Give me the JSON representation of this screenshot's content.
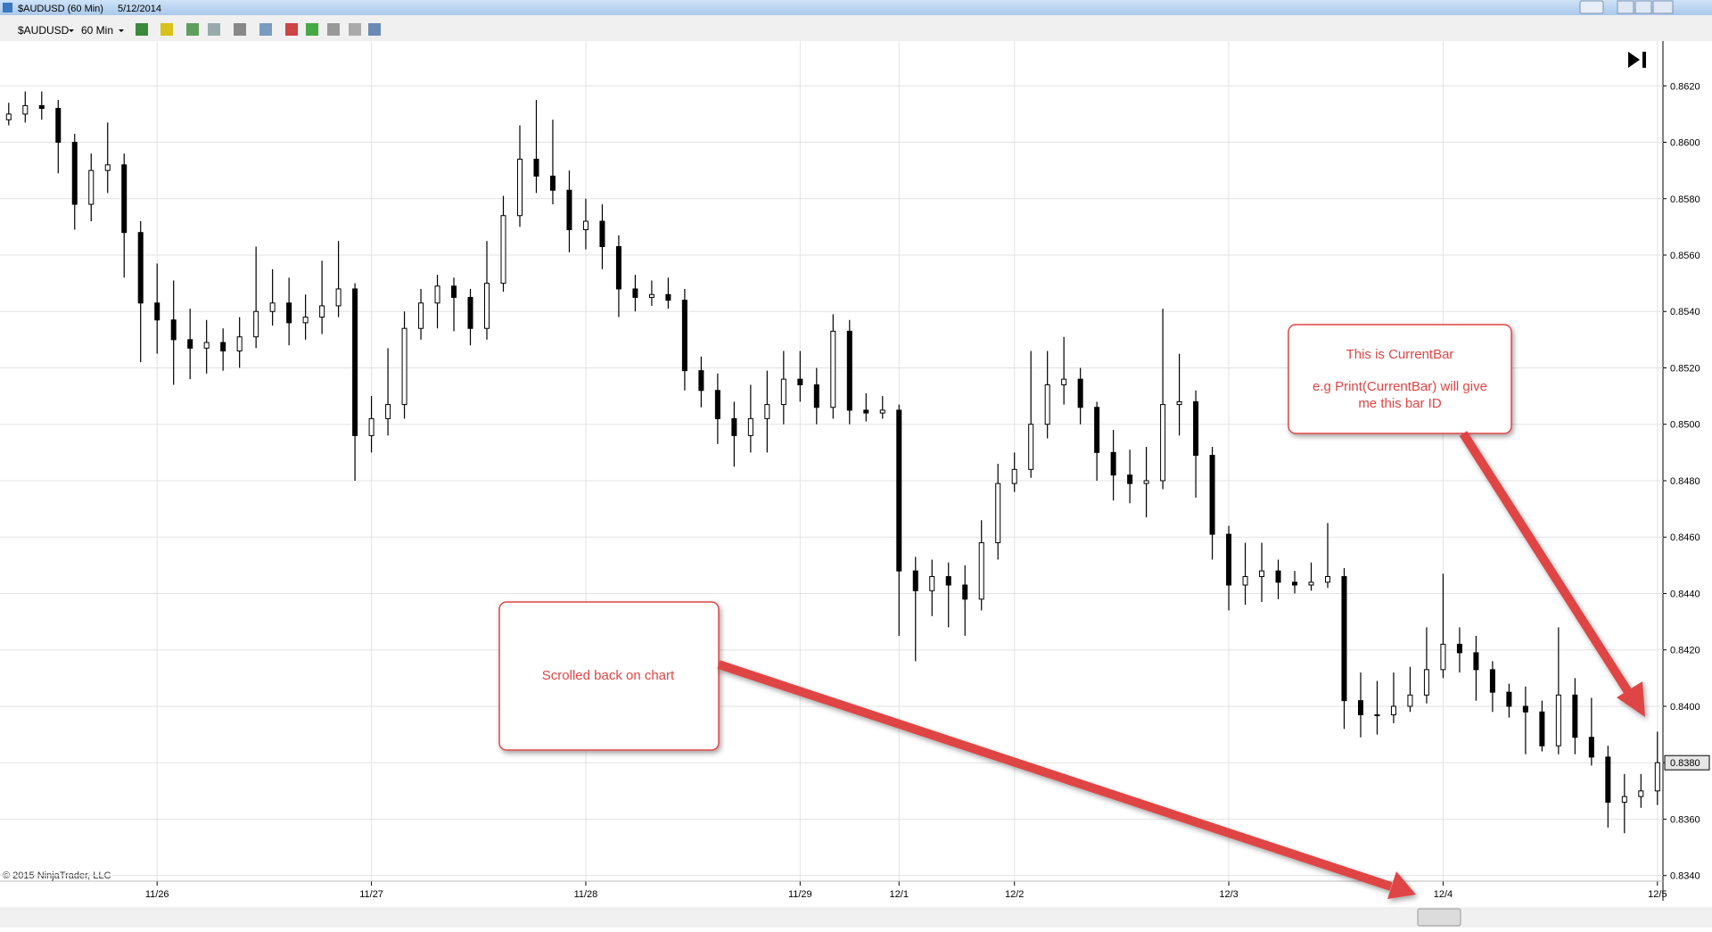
{
  "window": {
    "title": "$AUDUSD (60 Min)",
    "date": "5/12/2014"
  },
  "toolbar": {
    "instrument": "$AUDUSD",
    "interval": "60 Min"
  },
  "chart_data": {
    "type": "candlestick",
    "categories": [
      null,
      null,
      null,
      null,
      null,
      null,
      null,
      null,
      null,
      "11/26",
      null,
      null,
      null,
      null,
      null,
      null,
      null,
      null,
      null,
      null,
      null,
      null,
      "11/27",
      null,
      null,
      null,
      null,
      null,
      null,
      null,
      null,
      null,
      null,
      null,
      null,
      "11/28",
      null,
      null,
      null,
      null,
      null,
      null,
      null,
      null,
      null,
      null,
      null,
      null,
      "11/29",
      null,
      null,
      null,
      null,
      null,
      "12/1",
      null,
      null,
      null,
      null,
      null,
      null,
      "12/2",
      null,
      null,
      null,
      null,
      null,
      null,
      null,
      null,
      null,
      null,
      null,
      null,
      "12/3",
      null,
      null,
      null,
      null,
      null,
      null,
      null,
      null,
      null,
      null,
      null,
      null,
      "12/4",
      null,
      null,
      null,
      null,
      null,
      null,
      null,
      null,
      null,
      null,
      null,
      null,
      "12/5"
    ],
    "open": [
      0.8608,
      0.861,
      0.8613,
      0.8612,
      0.86,
      0.8578,
      0.859,
      0.8592,
      0.8568,
      0.8543,
      0.8537,
      0.853,
      0.8527,
      0.8529,
      0.8526,
      0.8531,
      0.854,
      0.8543,
      0.8536,
      0.8538,
      0.8542,
      0.8548,
      0.8496,
      0.8502,
      0.8507,
      0.8534,
      0.8543,
      0.8549,
      0.8545,
      0.8534,
      0.855,
      0.8574,
      0.8594,
      0.8588,
      0.8583,
      0.8569,
      0.8572,
      0.8563,
      0.8548,
      0.8545,
      0.8546,
      0.8544,
      0.8519,
      0.8512,
      0.8502,
      0.8496,
      0.8502,
      0.8507,
      0.8516,
      0.8514,
      0.8506,
      0.8533,
      0.8505,
      0.8504,
      0.8505,
      0.8448,
      0.8441,
      0.8446,
      0.8443,
      0.8438,
      0.8458,
      0.8479,
      0.8484,
      0.85,
      0.8514,
      0.8516,
      0.8506,
      0.849,
      0.8482,
      0.8479,
      0.848,
      0.8507,
      0.8508,
      0.8489,
      0.8461,
      0.8443,
      0.8446,
      0.8448,
      0.8444,
      0.8443,
      0.8444,
      0.8446,
      0.8402,
      0.8397,
      0.8397,
      0.84,
      0.8404,
      0.8413,
      0.8422,
      0.8419,
      0.8413,
      0.8405,
      0.84,
      0.8398,
      0.8386,
      0.8404,
      0.8389,
      0.8382,
      0.8366,
      0.8368,
      0.837
    ],
    "high": [
      0.8614,
      0.8618,
      0.8618,
      0.8615,
      0.8603,
      0.8596,
      0.8607,
      0.8596,
      0.8572,
      0.8557,
      0.8551,
      0.8541,
      0.8537,
      0.8534,
      0.8538,
      0.8563,
      0.8555,
      0.8552,
      0.8546,
      0.8558,
      0.8565,
      0.855,
      0.851,
      0.8527,
      0.854,
      0.8548,
      0.8553,
      0.8552,
      0.8548,
      0.8565,
      0.8581,
      0.8606,
      0.8615,
      0.8608,
      0.859,
      0.858,
      0.8578,
      0.8567,
      0.8553,
      0.8551,
      0.8552,
      0.8548,
      0.8524,
      0.8518,
      0.8508,
      0.8514,
      0.8519,
      0.8526,
      0.8526,
      0.852,
      0.8539,
      0.8537,
      0.8511,
      0.851,
      0.8507,
      0.8453,
      0.8452,
      0.8451,
      0.845,
      0.8466,
      0.8486,
      0.849,
      0.8526,
      0.8526,
      0.8531,
      0.852,
      0.8508,
      0.8498,
      0.8491,
      0.8492,
      0.8541,
      0.8525,
      0.8512,
      0.8492,
      0.8464,
      0.8458,
      0.8458,
      0.8452,
      0.8448,
      0.8451,
      0.8465,
      0.8449,
      0.8412,
      0.8409,
      0.8412,
      0.8414,
      0.8428,
      0.8447,
      0.8428,
      0.8425,
      0.8416,
      0.8408,
      0.8407,
      0.8402,
      0.8428,
      0.841,
      0.8403,
      0.8386,
      0.8376,
      0.8376,
      0.8391
    ],
    "low": [
      0.8606,
      0.8607,
      0.8608,
      0.8589,
      0.8569,
      0.8572,
      0.8582,
      0.8552,
      0.8522,
      0.8525,
      0.8514,
      0.8516,
      0.8518,
      0.8519,
      0.852,
      0.8527,
      0.8535,
      0.8528,
      0.853,
      0.8532,
      0.8538,
      0.848,
      0.849,
      0.8496,
      0.8502,
      0.853,
      0.8534,
      0.8533,
      0.8528,
      0.853,
      0.8547,
      0.857,
      0.8582,
      0.8578,
      0.8561,
      0.8562,
      0.8555,
      0.8538,
      0.854,
      0.8542,
      0.8541,
      0.8512,
      0.8506,
      0.8493,
      0.8485,
      0.849,
      0.849,
      0.85,
      0.8508,
      0.85,
      0.8502,
      0.85,
      0.8501,
      0.8502,
      0.8425,
      0.8416,
      0.8432,
      0.8428,
      0.8425,
      0.8434,
      0.8452,
      0.8476,
      0.8481,
      0.8495,
      0.8507,
      0.85,
      0.848,
      0.8473,
      0.8472,
      0.8467,
      0.8477,
      0.8496,
      0.8474,
      0.8452,
      0.8434,
      0.8436,
      0.8437,
      0.8438,
      0.844,
      0.8441,
      0.8442,
      0.8392,
      0.8389,
      0.839,
      0.8394,
      0.8398,
      0.8401,
      0.841,
      0.8412,
      0.8402,
      0.8398,
      0.8396,
      0.8383,
      0.8384,
      0.8383,
      0.8383,
      0.8379,
      0.8357,
      0.8355,
      0.8364,
      0.8365
    ],
    "close": [
      0.861,
      0.8613,
      0.8612,
      0.86,
      0.8578,
      0.859,
      0.8592,
      0.8568,
      0.8543,
      0.8537,
      0.853,
      0.8527,
      0.8529,
      0.8526,
      0.8531,
      0.854,
      0.8543,
      0.8536,
      0.8538,
      0.8542,
      0.8548,
      0.8496,
      0.8502,
      0.8507,
      0.8534,
      0.8543,
      0.8549,
      0.8545,
      0.8534,
      0.855,
      0.8574,
      0.8594,
      0.8588,
      0.8583,
      0.8569,
      0.8572,
      0.8563,
      0.8548,
      0.8545,
      0.8546,
      0.8544,
      0.8519,
      0.8512,
      0.8502,
      0.8496,
      0.8502,
      0.8507,
      0.8516,
      0.8514,
      0.8506,
      0.8533,
      0.8505,
      0.8504,
      0.8505,
      0.8448,
      0.8441,
      0.8446,
      0.8443,
      0.8438,
      0.8458,
      0.8479,
      0.8484,
      0.85,
      0.8514,
      0.8516,
      0.8506,
      0.849,
      0.8482,
      0.8479,
      0.848,
      0.8507,
      0.8508,
      0.8489,
      0.8461,
      0.8443,
      0.8446,
      0.8448,
      0.8444,
      0.8443,
      0.8444,
      0.8446,
      0.8402,
      0.8397,
      0.8397,
      0.84,
      0.8404,
      0.8413,
      0.8422,
      0.8419,
      0.8413,
      0.8405,
      0.84,
      0.8398,
      0.8386,
      0.8404,
      0.8389,
      0.8382,
      0.8366,
      0.8368,
      0.837,
      0.838
    ],
    "up_color": "#ffffff",
    "down_color": "#000000",
    "ylim": [
      0.8338,
      0.8634
    ],
    "yticks": [
      {
        "value": 0.834,
        "label": "0.8340"
      },
      {
        "value": 0.836,
        "label": "0.8360"
      },
      {
        "value": 0.838,
        "label": "0.8380"
      },
      {
        "value": 0.84,
        "label": "0.8400"
      },
      {
        "value": 0.842,
        "label": "0.8420"
      },
      {
        "value": 0.844,
        "label": "0.8440"
      },
      {
        "value": 0.846,
        "label": "0.8460"
      },
      {
        "value": 0.848,
        "label": "0.8480"
      },
      {
        "value": 0.85,
        "label": "0.8500"
      },
      {
        "value": 0.852,
        "label": "0.8520"
      },
      {
        "value": 0.854,
        "label": "0.8540"
      },
      {
        "value": 0.856,
        "label": "0.8560"
      },
      {
        "value": 0.858,
        "label": "0.8580"
      },
      {
        "value": 0.86,
        "label": "0.8600"
      },
      {
        "value": 0.862,
        "label": "0.8620"
      }
    ],
    "grid": true,
    "last_price": {
      "value": 0.838,
      "label": "0.8380"
    },
    "copyright": "© 2015 NinjaTrader, LLC",
    "annotations": [
      {
        "lines": [
          "This is CurrentBar",
          "e.g Print(CurrentBar) will give",
          "me this bar ID"
        ]
      },
      {
        "lines": [
          "Scrolled back on chart"
        ]
      }
    ]
  }
}
